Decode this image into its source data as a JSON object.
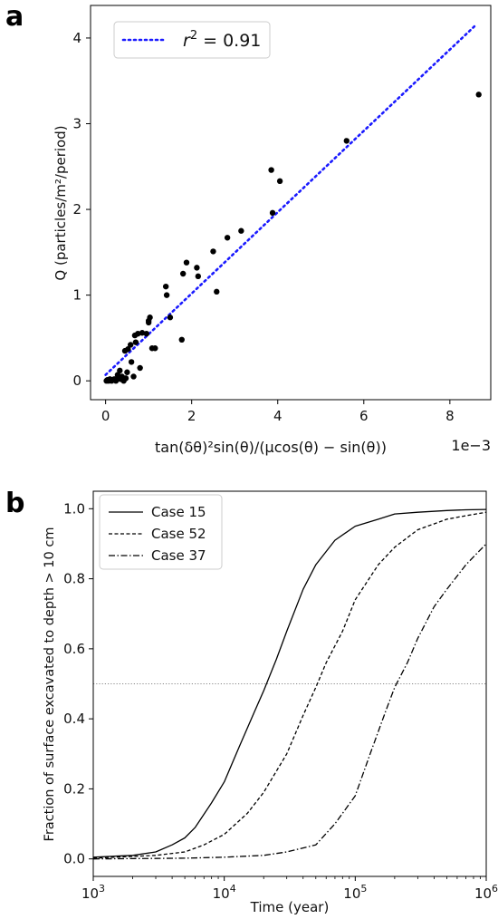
{
  "chart_data": [
    {
      "type": "scatter",
      "panel_label": "a",
      "xlabel": "tan(δθ)²sin(θ)/(μcos(θ) − sin(θ))",
      "x_multiplier_label": "1e−3",
      "ylabel": "Q (particles/m²/period)",
      "xlim": [
        -0.35,
        8.95
      ],
      "ylim": [
        -0.22,
        4.38
      ],
      "x_ticks": [
        "0",
        "2",
        "4",
        "6",
        "8"
      ],
      "y_ticks": [
        "0",
        "1",
        "2",
        "3",
        "4"
      ],
      "legend": {
        "label_prefix": "r",
        "superscript": "2",
        "label_suffix": " = 0.91",
        "placement": "upper left"
      },
      "fit_line": {
        "style": "dotted",
        "color": "#1a1aff",
        "x": [
          0.0,
          8.6
        ],
        "y": [
          0.07,
          4.15
        ]
      },
      "points": {
        "x": [
          0.02,
          0.04,
          0.07,
          0.1,
          0.14,
          0.17,
          0.2,
          0.24,
          0.28,
          0.3,
          0.33,
          0.35,
          0.38,
          0.42,
          0.45,
          0.47,
          0.5,
          0.52,
          0.58,
          0.6,
          0.65,
          0.68,
          0.7,
          0.75,
          0.8,
          0.85,
          0.95,
          1.0,
          1.0,
          1.03,
          1.08,
          1.15,
          1.4,
          1.42,
          1.5,
          1.77,
          1.8,
          1.88,
          2.12,
          2.15,
          2.5,
          2.58,
          2.83,
          3.15,
          3.85,
          3.88,
          4.05,
          5.6,
          8.67
        ],
        "y": [
          0.0,
          0.01,
          0.0,
          0.02,
          0.0,
          0.01,
          0.02,
          0.0,
          0.07,
          0.05,
          0.12,
          0.02,
          0.05,
          0.0,
          0.35,
          0.03,
          0.1,
          0.37,
          0.42,
          0.22,
          0.05,
          0.53,
          0.45,
          0.55,
          0.15,
          0.56,
          0.55,
          0.68,
          0.7,
          0.74,
          0.38,
          0.38,
          1.1,
          1.0,
          0.74,
          0.48,
          1.25,
          1.38,
          1.32,
          1.22,
          1.51,
          1.04,
          1.67,
          1.75,
          2.46,
          1.96,
          2.33,
          2.8,
          3.34
        ]
      }
    },
    {
      "type": "line",
      "panel_label": "b",
      "xlabel": "Time (year)",
      "ylabel": "Fraction of surface excavated to depth > 10 cm",
      "x_scale": "log",
      "xlim": [
        1000,
        1000000
      ],
      "ylim": [
        -0.05,
        1.05
      ],
      "x_tick_values": [
        1000,
        10000,
        100000,
        1000000
      ],
      "x_ticks": [
        "10",
        "10",
        "10",
        "10"
      ],
      "x_tick_exponents": [
        "3",
        "4",
        "5",
        "6"
      ],
      "y_ticks": [
        "0.0",
        "0.2",
        "0.4",
        "0.6",
        "0.8",
        "1.0"
      ],
      "hline": {
        "y": 0.5,
        "style": "dotted",
        "color": "#888888"
      },
      "legend_placement": "upper left",
      "series": [
        {
          "name": "Case 15",
          "style": "solid",
          "x": [
            1000,
            2000,
            3000,
            4000,
            5000,
            6000,
            8000,
            10000,
            13000,
            17000,
            20000,
            25000,
            30000,
            40000,
            50000,
            70000,
            100000,
            150000,
            200000,
            300000,
            500000,
            700000,
            1000000
          ],
          "y": [
            0.005,
            0.01,
            0.02,
            0.04,
            0.06,
            0.09,
            0.16,
            0.22,
            0.32,
            0.42,
            0.48,
            0.57,
            0.65,
            0.77,
            0.84,
            0.91,
            0.95,
            0.97,
            0.985,
            0.99,
            0.995,
            0.997,
            0.998
          ]
        },
        {
          "name": "Case 52",
          "style": "dashed",
          "x": [
            1000,
            3000,
            5000,
            7000,
            10000,
            15000,
            20000,
            30000,
            40000,
            50000,
            60000,
            80000,
            100000,
            150000,
            200000,
            300000,
            500000,
            700000,
            1000000
          ],
          "y": [
            0.002,
            0.01,
            0.02,
            0.04,
            0.07,
            0.13,
            0.19,
            0.3,
            0.41,
            0.49,
            0.56,
            0.65,
            0.74,
            0.84,
            0.89,
            0.94,
            0.97,
            0.98,
            0.99
          ]
        },
        {
          "name": "Case 37",
          "style": "dashdot",
          "x": [
            1000,
            5000,
            10000,
            20000,
            30000,
            50000,
            70000,
            100000,
            130000,
            170000,
            200000,
            250000,
            300000,
            400000,
            500000,
            700000,
            1000000
          ],
          "y": [
            0.0,
            0.002,
            0.005,
            0.01,
            0.02,
            0.04,
            0.1,
            0.18,
            0.3,
            0.42,
            0.49,
            0.56,
            0.63,
            0.72,
            0.77,
            0.84,
            0.9
          ]
        }
      ]
    }
  ]
}
